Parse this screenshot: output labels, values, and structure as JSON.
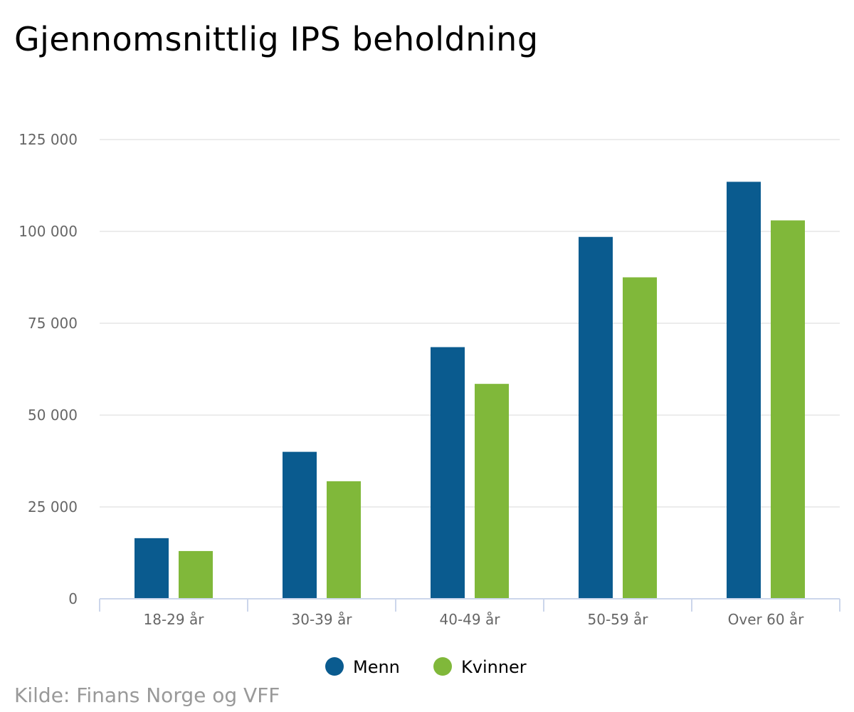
{
  "chart_data": {
    "type": "bar",
    "title": "Gjennomsnittlig IPS beholdning",
    "categories": [
      "18-29 år",
      "30-39 år",
      "40-49 år",
      "50-59 år",
      "Over 60 år"
    ],
    "series": [
      {
        "name": "Menn",
        "color": "#0a5b8f",
        "values": [
          16500,
          40000,
          68500,
          98500,
          113500
        ]
      },
      {
        "name": "Kvinner",
        "color": "#80b83a",
        "values": [
          13000,
          32000,
          58500,
          87500,
          103000
        ]
      }
    ],
    "ylim": [
      0,
      125000
    ],
    "yticks": [
      0,
      25000,
      50000,
      75000,
      100000,
      125000
    ],
    "ytick_labels": [
      "0",
      "25 000",
      "50 000",
      "75 000",
      "100 000",
      "125 000"
    ],
    "xlabel": "",
    "ylabel": "",
    "grid": true,
    "legend_position": "bottom-center"
  },
  "source": "Kilde: Finans Norge og VFF"
}
